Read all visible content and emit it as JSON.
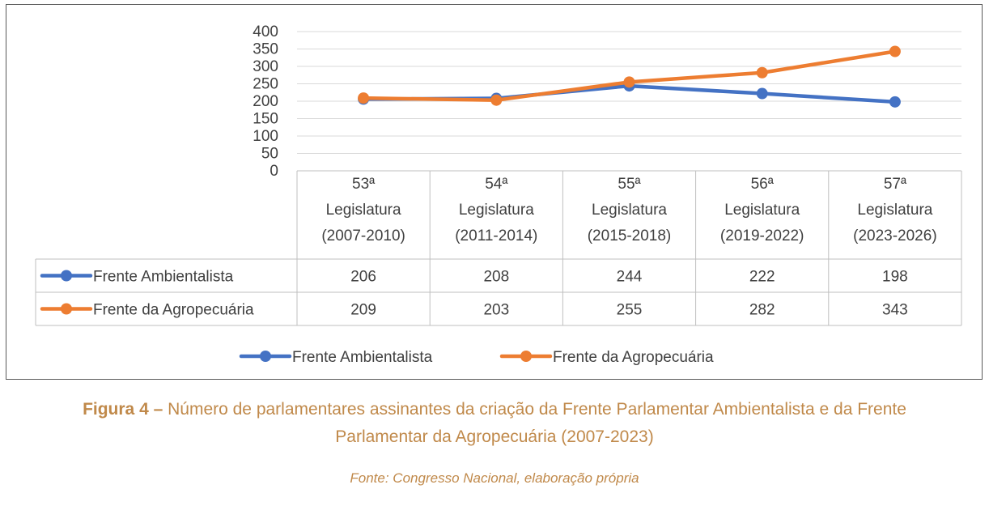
{
  "chart_data": {
    "type": "line",
    "categories": [
      [
        "53ª",
        "Legislatura",
        "(2007-2010)"
      ],
      [
        "54ª",
        "Legislatura",
        "(2011-2014)"
      ],
      [
        "55ª",
        "Legislatura",
        "(2015-2018)"
      ],
      [
        "56ª",
        "Legislatura",
        "(2019-2022)"
      ],
      [
        "57ª",
        "Legislatura",
        "(2023-2026)"
      ]
    ],
    "series": [
      {
        "name": "Frente Ambientalista",
        "values": [
          206,
          208,
          244,
          222,
          198
        ],
        "color": "#4472C4"
      },
      {
        "name": "Frente da Agropecuária",
        "values": [
          209,
          203,
          255,
          282,
          343
        ],
        "color": "#ED7D31"
      }
    ],
    "ylim": [
      0,
      400
    ],
    "yticks": [
      0,
      50,
      100,
      150,
      200,
      250,
      300,
      350,
      400
    ],
    "grid": true,
    "legend_position": "bottom",
    "data_table": true
  },
  "caption": {
    "label": "Figura 4 –",
    "line1": " Número de parlamentares assinantes da criação da Frente Parlamentar Ambientalista e da Frente",
    "line2": "Parlamentar da Agropecuária (2007-2023)",
    "source": "Fonte: Congresso Nacional, elaboração própria"
  }
}
